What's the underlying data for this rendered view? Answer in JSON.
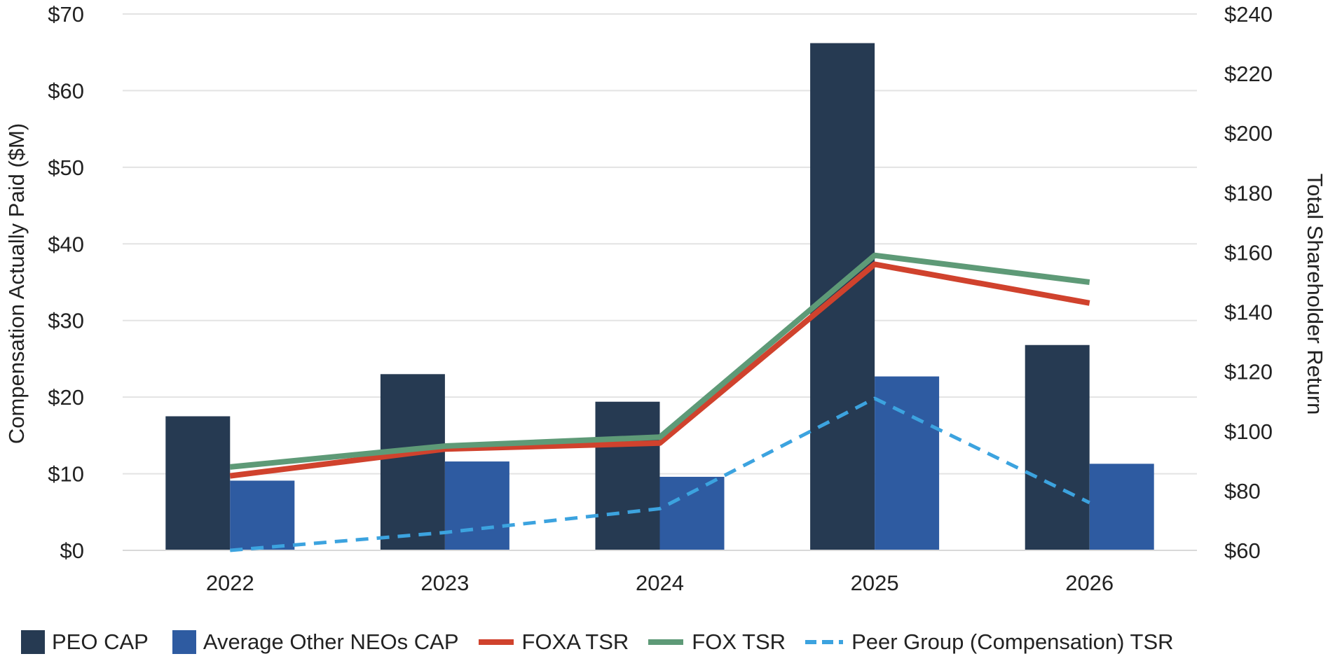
{
  "chart_data": {
    "type": "bar",
    "categories": [
      "2022",
      "2023",
      "2024",
      "2025",
      "2026"
    ],
    "bar_series": [
      {
        "name": "PEO CAP",
        "values": [
          17.5,
          23.0,
          19.4,
          66.2,
          26.8
        ],
        "color": "#263a52"
      },
      {
        "name": "Average Other NEOs CAP",
        "values": [
          9.1,
          11.6,
          9.6,
          22.7,
          11.3
        ],
        "color": "#2e5ba1"
      }
    ],
    "line_series": [
      {
        "name": "FOXA TSR",
        "values": [
          85,
          94,
          96,
          156,
          143
        ],
        "color": "#d0422d",
        "dashed": false
      },
      {
        "name": "FOX TSR",
        "values": [
          88,
          95,
          98,
          159,
          150
        ],
        "color": "#5e9a77",
        "dashed": false
      },
      {
        "name": "Peer Group (Compensation) TSR",
        "values": [
          60,
          66,
          74,
          111,
          76
        ],
        "color": "#3ca3df",
        "dashed": true
      }
    ],
    "ylabel": "Compensation Actually Paid ($M)",
    "y2label": "Total Shareholder Return",
    "ylim": [
      0,
      70
    ],
    "y2lim": [
      60,
      240
    ],
    "yticks": [
      "$0",
      "$10",
      "$20",
      "$30",
      "$40",
      "$50",
      "$60",
      "$70"
    ],
    "y2ticks": [
      "$60",
      "$80",
      "$100",
      "$120",
      "$140",
      "$160",
      "$180",
      "$200",
      "$220",
      "$240"
    ],
    "grid": true,
    "legend_position": "bottom"
  },
  "legend": {
    "items": [
      {
        "label": "PEO CAP",
        "kind": "box",
        "color": "#263a52"
      },
      {
        "label": "Average Other NEOs CAP",
        "kind": "box",
        "color": "#2e5ba1"
      },
      {
        "label": "FOXA TSR",
        "kind": "line",
        "color": "#d0422d"
      },
      {
        "label": "FOX TSR",
        "kind": "line",
        "color": "#5e9a77"
      },
      {
        "label": "Peer Group (Compensation) TSR",
        "kind": "dash",
        "color": "#3ca3df"
      }
    ]
  }
}
